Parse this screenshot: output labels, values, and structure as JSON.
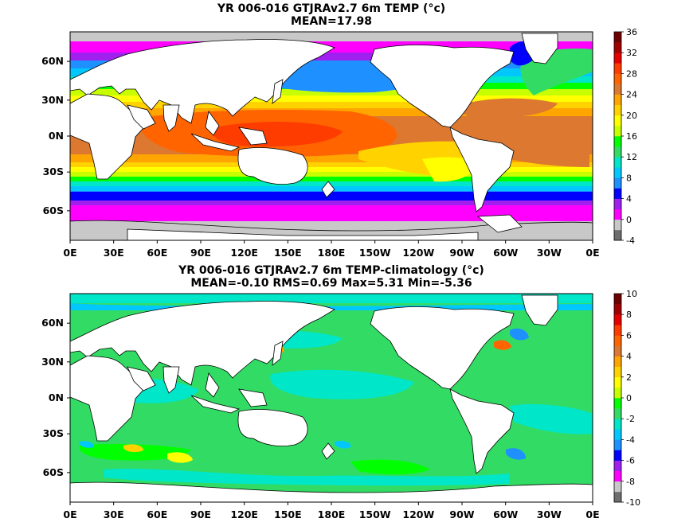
{
  "panels": [
    {
      "title_line1": "YR 006-016 GTJRAv2.7 6m TEMP (°c)",
      "title_line2": "MEAN=17.98",
      "field": "sea-surface-temperature",
      "colorbar": {
        "levels": [
          "-4",
          "0",
          "4",
          "8",
          "12",
          "16",
          "20",
          "24",
          "28",
          "32",
          "36"
        ],
        "colors": [
          "#6e6e6e",
          "#c8c8c8",
          "#ff00ff",
          "#a020f0",
          "#0000ff",
          "#1e90ff",
          "#00c8ff",
          "#00e6c8",
          "#32dc64",
          "#00ff00",
          "#c8ff00",
          "#ffff00",
          "#ffd200",
          "#ffa500",
          "#dc7830",
          "#ff6400",
          "#ff3c00",
          "#e60000",
          "#a00000",
          "#6e0000"
        ]
      }
    },
    {
      "title_line1": "YR 006-016 GTJRAv2.7 6m TEMP-climatology (°c)",
      "title_line2": "MEAN=-0.10   RMS=0.69   Max=5.31   Min=-5.36",
      "field": "temperature-anomaly",
      "colorbar": {
        "levels": [
          "-10",
          "-8",
          "-6",
          "-4",
          "-2",
          "0",
          "2",
          "4",
          "6",
          "8",
          "10"
        ],
        "colors": [
          "#6e6e6e",
          "#c8c8c8",
          "#ff00ff",
          "#a020f0",
          "#0000ff",
          "#1e90ff",
          "#00c8ff",
          "#00e6c8",
          "#32dc64",
          "#00ff00",
          "#c8ff00",
          "#ffff00",
          "#ffd200",
          "#ffa500",
          "#dc7830",
          "#ff6400",
          "#ff3c00",
          "#e60000",
          "#a00000",
          "#6e0000"
        ]
      }
    }
  ],
  "lat_labels": [
    "60N",
    "30N",
    "0N",
    "30S",
    "60S"
  ],
  "lon_labels": [
    "0E",
    "30E",
    "60E",
    "90E",
    "120E",
    "150E",
    "180E",
    "150W",
    "120W",
    "90W",
    "60W",
    "30W",
    "0E"
  ],
  "land_color": "#ffffff",
  "missing_color": "#c8c8c8"
}
